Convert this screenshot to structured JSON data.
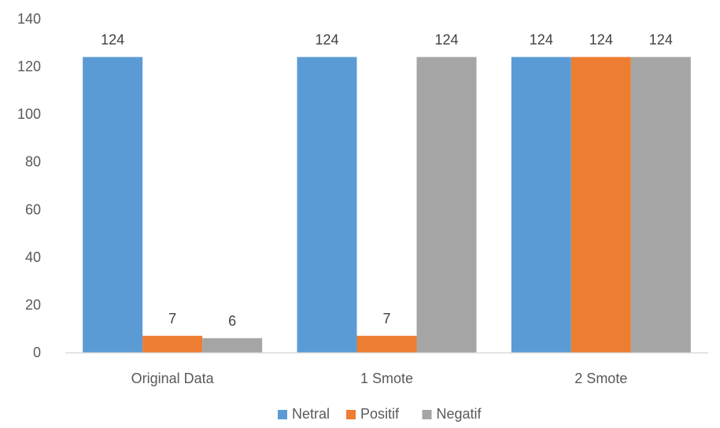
{
  "chart_data": {
    "type": "bar",
    "title": "",
    "xlabel": "",
    "ylabel": "",
    "categories": [
      "Original Data",
      "1 Smote",
      "2 Smote"
    ],
    "series": [
      {
        "name": "Netral",
        "values": [
          124,
          124,
          124
        ],
        "color": "#5B9BD5"
      },
      {
        "name": "Positif",
        "values": [
          7,
          7,
          124
        ],
        "color": "#ED7D31"
      },
      {
        "name": "Negatif",
        "values": [
          6,
          124,
          124
        ],
        "color": "#A5A5A5"
      }
    ],
    "ylim": [
      0,
      140
    ],
    "yticks": [
      0,
      20,
      40,
      60,
      80,
      100,
      120,
      140
    ],
    "data_labels": [
      [
        "124",
        "7",
        "6"
      ],
      [
        "124",
        "7",
        "124"
      ],
      [
        "124",
        "124",
        "124"
      ]
    ],
    "grid": false,
    "legend_position": "bottom"
  }
}
